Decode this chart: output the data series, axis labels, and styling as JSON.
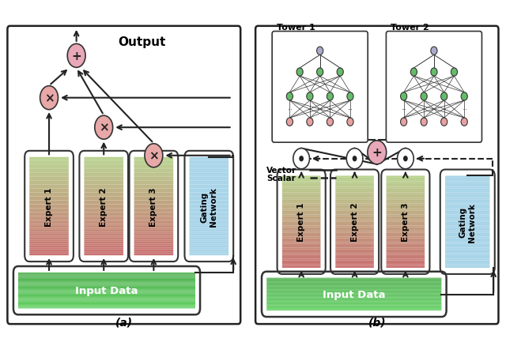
{
  "fig_width": 6.4,
  "fig_height": 4.39,
  "background": "#ffffff",
  "expert_top": "#c97070",
  "expert_bot": "#b8d490",
  "gating_color_top": "#a8d4e8",
  "gating_color_bot": "#a8d4e8",
  "input_top": "#55cc55",
  "input_bot": "#44aa44",
  "circle_x_color": "#e8a8a8",
  "circle_plus_color": "#e8a8b8",
  "dot_circle_color": "#ffffff",
  "label_a": "(a)",
  "label_b": "(b)",
  "output_text": "Output",
  "input_text": "Input Data",
  "gating_text": "Gating\nNetwork",
  "expert_texts": [
    "Expert 1",
    "Expert 2",
    "Expert 3"
  ],
  "tower1_text": "Tower 1",
  "tower2_text": "Tower 2",
  "vector_label": "Vector",
  "scalar_label": "Scalar",
  "node_green": "#66bb6a",
  "node_pink": "#e8a0a0",
  "node_gray": "#aaaacc",
  "edge_color": "#222222"
}
